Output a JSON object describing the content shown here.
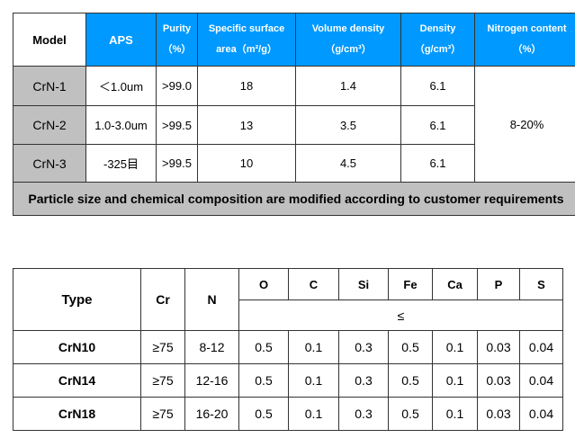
{
  "table1": {
    "headers": {
      "model": "Model",
      "aps": "APS",
      "purity_line1": "Purity",
      "purity_line2": "（%）",
      "surface_line1": "Specific surface",
      "surface_line2": "area（m²/g）",
      "volume_line1": "Volume density",
      "volume_line2": "（g/cm³）",
      "density_line1": "Density",
      "density_line2": "（g/cm³）",
      "nitrogen_line1": "Nitrogen content",
      "nitrogen_line2": "（%）"
    },
    "rows": [
      {
        "model": "CrN-1",
        "aps": "＜1.0um",
        "purity": ">99.0",
        "surface": "18",
        "volume": "1.4",
        "density": "6.1"
      },
      {
        "model": "CrN-2",
        "aps": "1.0-3.0um",
        "purity": ">99.5",
        "surface": "13",
        "volume": "3.5",
        "density": "6.1"
      },
      {
        "model": "CrN-3",
        "aps": "-325目",
        "purity": ">99.5",
        "surface": "10",
        "volume": "4.5",
        "density": "6.1"
      }
    ],
    "nitrogen_value": "8-20%",
    "note": "Particle size and chemical composition are modified according to customer requirements"
  },
  "table2": {
    "headers": {
      "type": "Type",
      "cr": "Cr",
      "n": "N",
      "elements": [
        "O",
        "C",
        "Si",
        "Fe",
        "Ca",
        "P",
        "S"
      ],
      "le_symbol": "≤"
    },
    "rows": [
      {
        "type": "CrN10",
        "cr": "≥75",
        "n": "8-12",
        "values": [
          "0.5",
          "0.1",
          "0.3",
          "0.5",
          "0.1",
          "0.03",
          "0.04"
        ]
      },
      {
        "type": "CrN14",
        "cr": "≥75",
        "n": "12-16",
        "values": [
          "0.5",
          "0.1",
          "0.3",
          "0.5",
          "0.1",
          "0.03",
          "0.04"
        ]
      },
      {
        "type": "CrN18",
        "cr": "≥75",
        "n": "16-20",
        "values": [
          "0.5",
          "0.1",
          "0.3",
          "0.5",
          "0.1",
          "0.03",
          "0.04"
        ]
      }
    ]
  }
}
